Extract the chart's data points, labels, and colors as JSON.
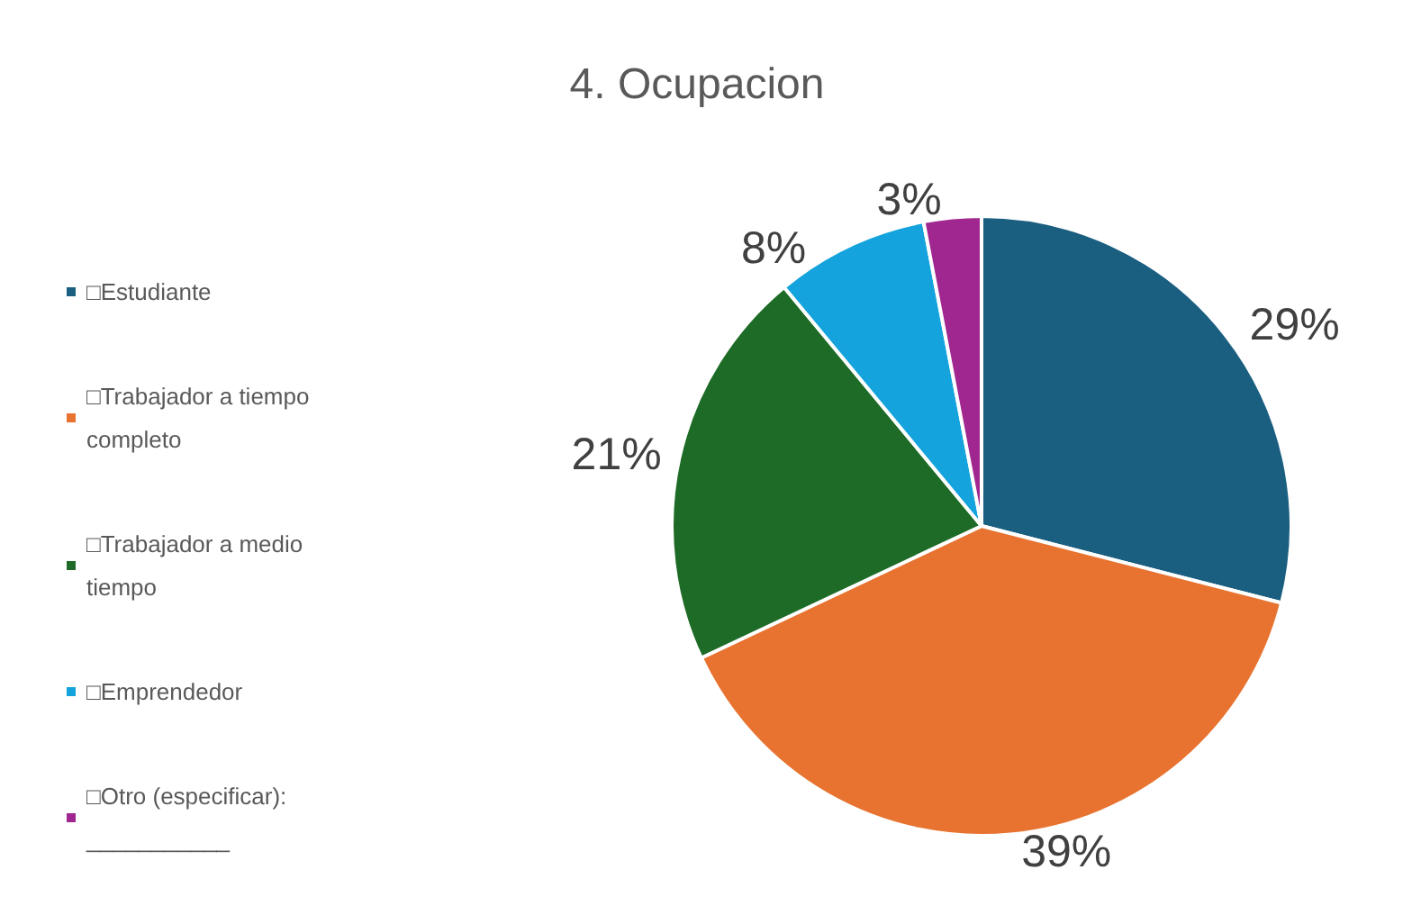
{
  "chart_data": {
    "type": "pie",
    "title": "4. Ocupacion",
    "categories": [
      "□Estudiante",
      "□Trabajador a tiempo completo",
      "□Trabajador a medio tiempo",
      "□Emprendedor",
      "□Otro (especificar): ___________"
    ],
    "values": [
      29,
      39,
      21,
      8,
      3
    ],
    "colors": [
      "#1a5e80",
      "#e87330",
      "#1d6b26",
      "#14a3dc",
      "#a0278f"
    ],
    "value_labels": [
      "29%",
      "39%",
      "21%",
      "8%",
      "3%"
    ],
    "legend": "left"
  }
}
